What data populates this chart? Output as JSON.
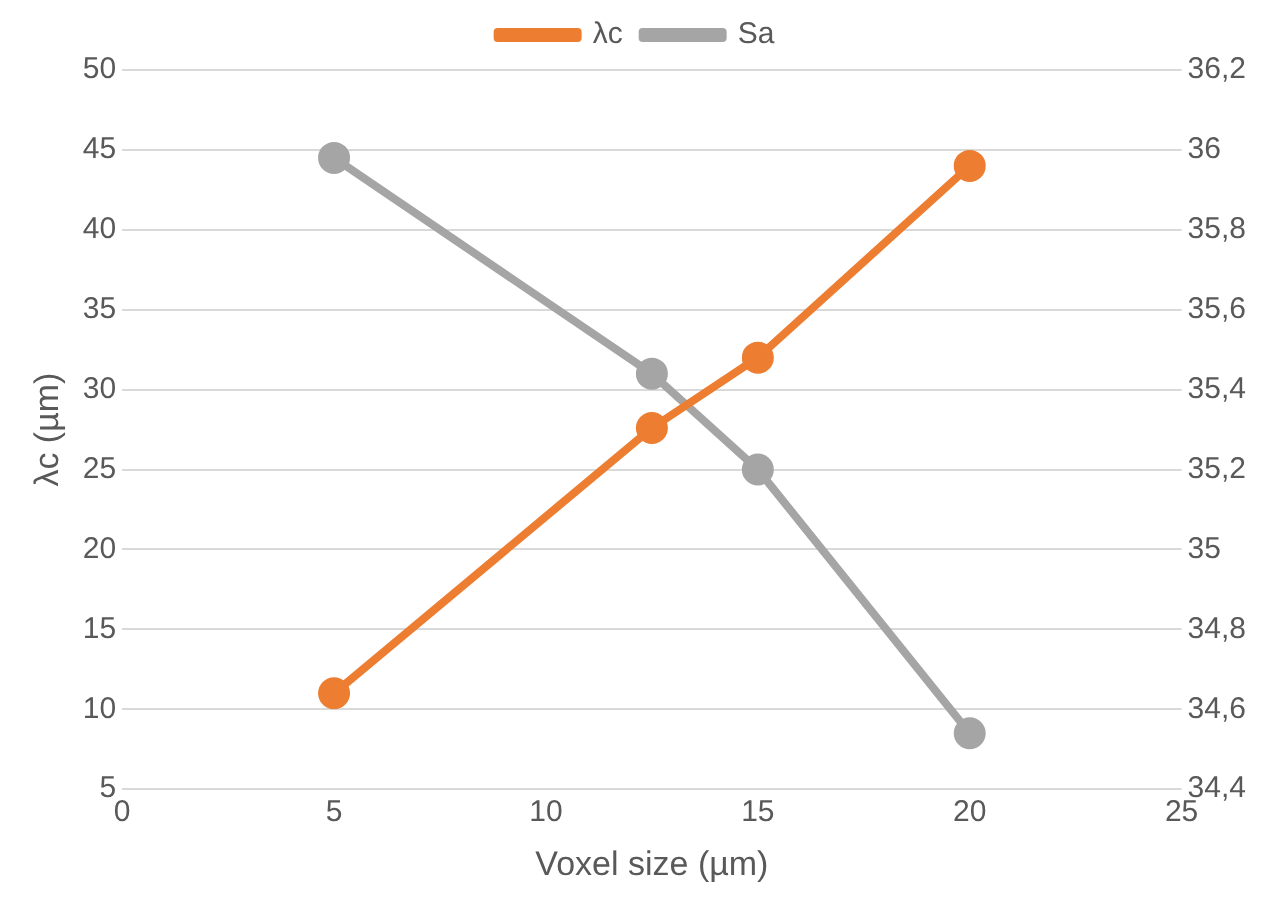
{
  "chart_data": {
    "type": "line",
    "xlabel": "Voxel size (µm)",
    "ylabel": "λc (µm)",
    "x": [
      5,
      12.5,
      15,
      20
    ],
    "series": [
      {
        "name": "λc",
        "color": "#ed7d31",
        "values": [
          11,
          27.6,
          32,
          44
        ]
      },
      {
        "name": "Sa",
        "color": "#a5a5a5",
        "values": [
          35.98,
          35.44,
          35.2,
          34.54
        ],
        "axis": "y2"
      }
    ],
    "xlim": [
      0,
      25
    ],
    "xticks": [
      0,
      5,
      10,
      15,
      20,
      25
    ],
    "ylim": [
      5,
      50
    ],
    "yticks": [
      5,
      10,
      15,
      20,
      25,
      30,
      35,
      40,
      45,
      50
    ],
    "y2lim": [
      34.4,
      36.2
    ],
    "y2ticks": [
      {
        "value": 34.4,
        "label": "34,4"
      },
      {
        "value": 34.6,
        "label": "34,6"
      },
      {
        "value": 34.8,
        "label": "34,8"
      },
      {
        "value": 35,
        "label": "35"
      },
      {
        "value": 35.2,
        "label": "35,2"
      },
      {
        "value": 35.4,
        "label": "35,4"
      },
      {
        "value": 35.6,
        "label": "35,6"
      },
      {
        "value": 35.8,
        "label": "35,8"
      },
      {
        "value": 36,
        "label": "36"
      },
      {
        "value": 36.2,
        "label": "36,2"
      }
    ],
    "grid": "y",
    "legend": "top",
    "marker": "circle",
    "line_style": "solid"
  }
}
